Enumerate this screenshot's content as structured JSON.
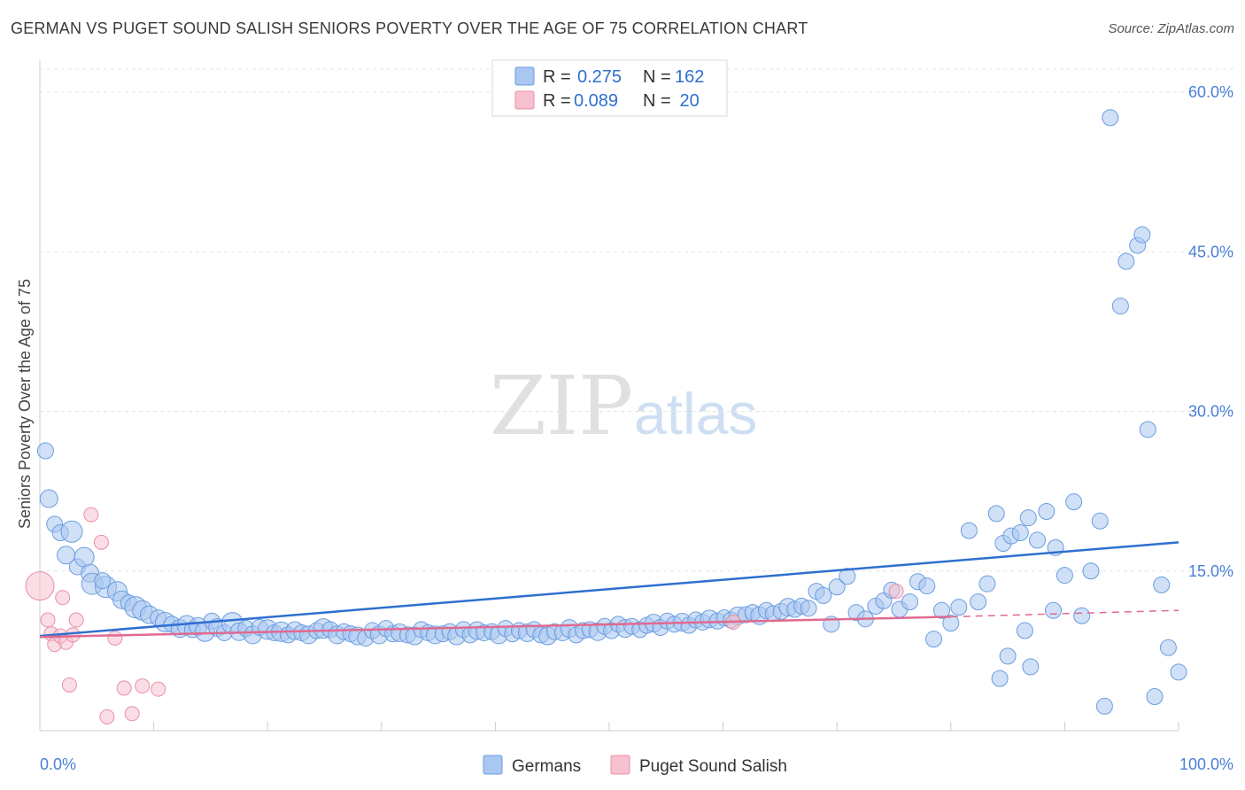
{
  "title": "GERMAN VS PUGET SOUND SALISH SENIORS POVERTY OVER THE AGE OF 75 CORRELATION CHART",
  "source": "Source: ZipAtlas.com",
  "watermark": {
    "zip": "ZIP",
    "atlas": "atlas"
  },
  "legend": {
    "r_label": "R =",
    "n_label": "N =",
    "rows": [
      {
        "r": "0.275",
        "n": "162",
        "color": "#a9c7f0",
        "border": "#6a9de0"
      },
      {
        "r": "0.089",
        "n": " 20",
        "color": "#f7c1cf",
        "border": "#e890a8"
      }
    ]
  },
  "bottom_legend": [
    {
      "label": "Germans",
      "color": "#a9c7f0",
      "border": "#6a9de0"
    },
    {
      "label": "Puget Sound Salish",
      "color": "#f7c1cf",
      "border": "#e890a8"
    }
  ],
  "chart_data": {
    "type": "scatter",
    "title": "GERMAN VS PUGET SOUND SALISH SENIORS POVERTY OVER THE AGE OF 75 CORRELATION CHART",
    "xlabel": "",
    "ylabel": "Seniors Poverty Over the Age of 75",
    "xlim": [
      0,
      100
    ],
    "ylim": [
      0,
      63
    ],
    "x_tick_labels": [
      "0.0%",
      "100.0%"
    ],
    "y_ticks": [
      15,
      30,
      45,
      60
    ],
    "y_tick_labels": [
      "15.0%",
      "30.0%",
      "45.0%",
      "60.0%"
    ],
    "grid": true,
    "series": [
      {
        "name": "Germans",
        "color": "#a9c7f0",
        "stroke": "#6a9de0",
        "trend": {
          "x": [
            0,
            100
          ],
          "y": [
            8.9,
            17.7
          ],
          "color": "#2f6fd0"
        },
        "points": [
          [
            0.5,
            26.3,
            9
          ],
          [
            0.8,
            21.8,
            10
          ],
          [
            1.3,
            19.4,
            9
          ],
          [
            1.8,
            18.6,
            9
          ],
          [
            2.8,
            18.7,
            12
          ],
          [
            2.3,
            16.5,
            10
          ],
          [
            3.3,
            15.4,
            9
          ],
          [
            3.9,
            16.3,
            11
          ],
          [
            4.4,
            14.8,
            10
          ],
          [
            4.6,
            13.8,
            12
          ],
          [
            5.8,
            13.5,
            12
          ],
          [
            5.5,
            14.1,
            9
          ],
          [
            6.8,
            13.1,
            11
          ],
          [
            7.2,
            12.3,
            10
          ],
          [
            7.8,
            12.0,
            9
          ],
          [
            8.4,
            11.6,
            12
          ],
          [
            9.0,
            11.3,
            11
          ],
          [
            9.6,
            10.9,
            10
          ],
          [
            10.4,
            10.6,
            9
          ],
          [
            11.0,
            10.2,
            11
          ],
          [
            11.6,
            10.0,
            9
          ],
          [
            12.3,
            9.6,
            10
          ],
          [
            12.9,
            9.9,
            11
          ],
          [
            13.4,
            9.5,
            9
          ],
          [
            13.9,
            9.8,
            10
          ],
          [
            14.5,
            9.3,
            11
          ],
          [
            15.1,
            10.3,
            9
          ],
          [
            15.6,
            9.7,
            10
          ],
          [
            16.2,
            9.2,
            9
          ],
          [
            16.9,
            10.1,
            12
          ],
          [
            17.5,
            9.3,
            10
          ],
          [
            18.1,
            9.6,
            9
          ],
          [
            18.7,
            9.0,
            10
          ],
          [
            19.3,
            9.7,
            9
          ],
          [
            20.0,
            9.5,
            11
          ],
          [
            20.6,
            9.2,
            9
          ],
          [
            21.2,
            9.3,
            11
          ],
          [
            21.8,
            9.0,
            9
          ],
          [
            22.4,
            9.4,
            10
          ],
          [
            23.0,
            9.2,
            9
          ],
          [
            23.6,
            9.0,
            10
          ],
          [
            24.3,
            9.4,
            9
          ],
          [
            24.9,
            9.6,
            11
          ],
          [
            25.5,
            9.5,
            9
          ],
          [
            26.1,
            9.0,
            10
          ],
          [
            26.7,
            9.3,
            9
          ],
          [
            27.3,
            9.1,
            9
          ],
          [
            27.9,
            8.9,
            10
          ],
          [
            28.6,
            8.7,
            9
          ],
          [
            29.2,
            9.4,
            9
          ],
          [
            29.8,
            9.0,
            10
          ],
          [
            30.4,
            9.6,
            9
          ],
          [
            31.0,
            9.1,
            9
          ],
          [
            31.6,
            9.2,
            10
          ],
          [
            32.3,
            9.0,
            9
          ],
          [
            32.9,
            8.9,
            10
          ],
          [
            33.5,
            9.5,
            9
          ],
          [
            34.1,
            9.2,
            9
          ],
          [
            34.7,
            9.0,
            10
          ],
          [
            35.4,
            9.1,
            9
          ],
          [
            36.0,
            9.3,
            9
          ],
          [
            36.6,
            8.9,
            10
          ],
          [
            37.2,
            9.5,
            9
          ],
          [
            37.8,
            9.0,
            9
          ],
          [
            38.4,
            9.4,
            10
          ],
          [
            39.0,
            9.2,
            9
          ],
          [
            39.7,
            9.3,
            9
          ],
          [
            40.3,
            9.0,
            10
          ],
          [
            40.9,
            9.6,
            9
          ],
          [
            41.5,
            9.1,
            9
          ],
          [
            42.1,
            9.4,
            9
          ],
          [
            42.8,
            9.2,
            10
          ],
          [
            43.4,
            9.5,
            9
          ],
          [
            44.0,
            9.0,
            9
          ],
          [
            44.6,
            8.9,
            10
          ],
          [
            45.2,
            9.3,
            9
          ],
          [
            45.9,
            9.2,
            9
          ],
          [
            46.5,
            9.6,
            10
          ],
          [
            47.1,
            9.0,
            9
          ],
          [
            47.7,
            9.4,
            9
          ],
          [
            48.3,
            9.5,
            9
          ],
          [
            49.0,
            9.3,
            10
          ],
          [
            49.6,
            9.8,
            9
          ],
          [
            50.2,
            9.4,
            9
          ],
          [
            50.8,
            10.0,
            9
          ],
          [
            51.4,
            9.6,
            10
          ],
          [
            52.0,
            9.8,
            9
          ],
          [
            52.7,
            9.5,
            9
          ],
          [
            53.3,
            9.9,
            9
          ],
          [
            53.9,
            10.1,
            10
          ],
          [
            54.5,
            9.7,
            9
          ],
          [
            55.1,
            10.3,
            9
          ],
          [
            55.7,
            10.0,
            9
          ],
          [
            56.4,
            10.2,
            10
          ],
          [
            57.0,
            9.9,
            9
          ],
          [
            57.6,
            10.4,
            9
          ],
          [
            58.2,
            10.2,
            9
          ],
          [
            58.8,
            10.5,
            10
          ],
          [
            59.5,
            10.3,
            9
          ],
          [
            60.1,
            10.6,
            9
          ],
          [
            60.7,
            10.4,
            9
          ],
          [
            61.3,
            10.8,
            10
          ],
          [
            62.0,
            10.9,
            9
          ],
          [
            62.6,
            11.1,
            9
          ],
          [
            63.2,
            10.8,
            10
          ],
          [
            63.8,
            11.3,
            9
          ],
          [
            64.4,
            11.0,
            9
          ],
          [
            65.1,
            11.2,
            9
          ],
          [
            65.7,
            11.6,
            10
          ],
          [
            66.3,
            11.4,
            9
          ],
          [
            66.9,
            11.7,
            9
          ],
          [
            67.5,
            11.5,
            9
          ],
          [
            68.2,
            13.1,
            9
          ],
          [
            68.8,
            12.7,
            9
          ],
          [
            69.5,
            10.0,
            9
          ],
          [
            70.0,
            13.5,
            9
          ],
          [
            70.9,
            14.5,
            9
          ],
          [
            71.7,
            11.1,
            9
          ],
          [
            72.5,
            10.5,
            9
          ],
          [
            73.4,
            11.7,
            9
          ],
          [
            74.1,
            12.2,
            9
          ],
          [
            74.8,
            13.2,
            9
          ],
          [
            75.5,
            11.4,
            9
          ],
          [
            76.4,
            12.1,
            9
          ],
          [
            77.1,
            14.0,
            9
          ],
          [
            77.9,
            13.6,
            9
          ],
          [
            78.5,
            8.6,
            9
          ],
          [
            79.2,
            11.3,
            9
          ],
          [
            80.0,
            10.1,
            9
          ],
          [
            80.7,
            11.6,
            9
          ],
          [
            81.6,
            18.8,
            9
          ],
          [
            82.4,
            12.1,
            9
          ],
          [
            83.2,
            13.8,
            9
          ],
          [
            84.0,
            20.4,
            9
          ],
          [
            84.6,
            17.6,
            9
          ],
          [
            85.3,
            18.3,
            9
          ],
          [
            86.1,
            18.6,
            9
          ],
          [
            86.8,
            20.0,
            9
          ],
          [
            87.6,
            17.9,
            9
          ],
          [
            88.4,
            20.6,
            9
          ],
          [
            89.2,
            17.2,
            9
          ],
          [
            90.0,
            14.6,
            9
          ],
          [
            90.8,
            21.5,
            9
          ],
          [
            91.5,
            10.8,
            9
          ],
          [
            92.3,
            15.0,
            9
          ],
          [
            93.1,
            19.7,
            9
          ],
          [
            94.0,
            57.6,
            9
          ],
          [
            94.9,
            39.9,
            9
          ],
          [
            95.4,
            44.1,
            9
          ],
          [
            96.4,
            45.6,
            9
          ],
          [
            97.3,
            28.3,
            9
          ],
          [
            97.9,
            3.2,
            9
          ],
          [
            98.5,
            13.7,
            9
          ],
          [
            99.1,
            7.8,
            9
          ],
          [
            84.3,
            4.9,
            9
          ],
          [
            85.0,
            7.0,
            9
          ],
          [
            87.0,
            6.0,
            9
          ],
          [
            86.5,
            9.4,
            9
          ],
          [
            89.0,
            11.3,
            9
          ],
          [
            93.5,
            2.3,
            9
          ],
          [
            96.8,
            46.6,
            9
          ],
          [
            100.0,
            5.5,
            9
          ]
        ]
      },
      {
        "name": "Puget Sound Salish",
        "color": "#f7c1cf",
        "stroke": "#e890a8",
        "trend": {
          "x": [
            0,
            80
          ],
          "y": [
            8.8,
            10.7
          ],
          "color": "#e06a90"
        },
        "trend_dashed": {
          "x": [
            80,
            100
          ],
          "y": [
            10.7,
            11.3
          ]
        },
        "points": [
          [
            0.0,
            13.6,
            16
          ],
          [
            0.7,
            10.4,
            8
          ],
          [
            1.0,
            9.1,
            8
          ],
          [
            1.3,
            8.1,
            8
          ],
          [
            1.8,
            8.9,
            8
          ],
          [
            2.0,
            12.5,
            8
          ],
          [
            2.3,
            8.3,
            8
          ],
          [
            2.6,
            4.3,
            8
          ],
          [
            2.9,
            9.0,
            8
          ],
          [
            3.2,
            10.4,
            8
          ],
          [
            4.5,
            20.3,
            8
          ],
          [
            5.4,
            17.7,
            8
          ],
          [
            5.9,
            1.3,
            8
          ],
          [
            6.6,
            8.7,
            8
          ],
          [
            7.4,
            4.0,
            8
          ],
          [
            8.1,
            1.6,
            8
          ],
          [
            9.0,
            4.2,
            8
          ],
          [
            10.4,
            3.9,
            8
          ],
          [
            60.9,
            10.2,
            8
          ],
          [
            75.2,
            13.1,
            8
          ]
        ]
      }
    ]
  }
}
